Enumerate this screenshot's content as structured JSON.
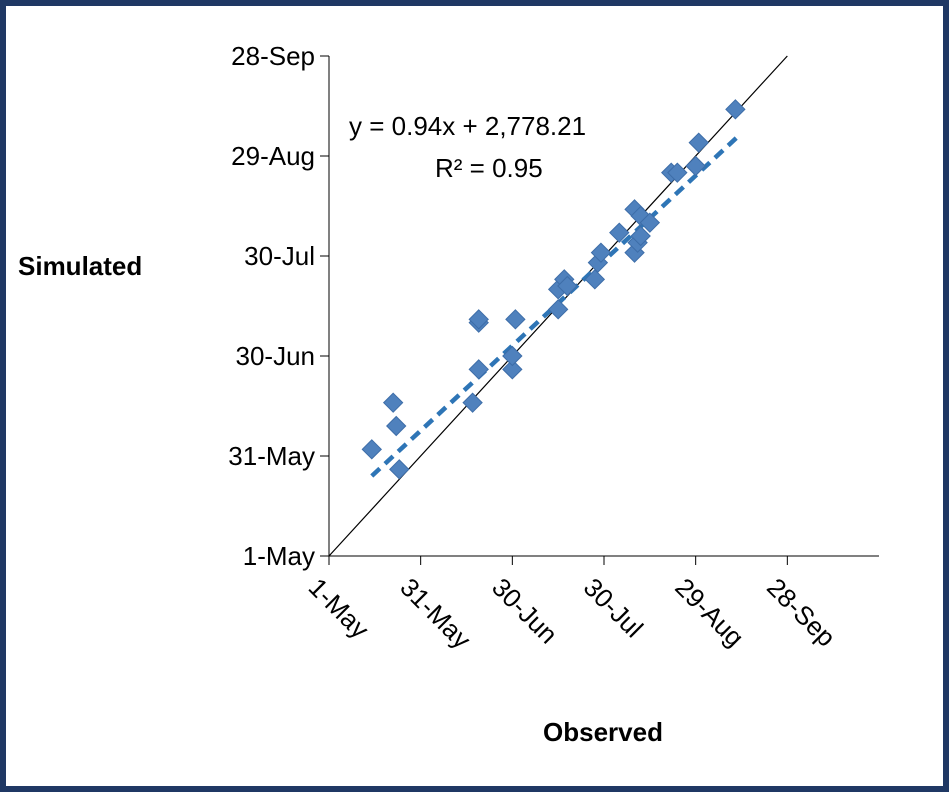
{
  "chart_data": {
    "type": "scatter",
    "xlabel": "Observed",
    "ylabel": "Simulated",
    "x_ticks": [
      "1-May",
      "31-May",
      "30-Jun",
      "30-Jul",
      "29-Aug",
      "28-Sep"
    ],
    "y_ticks": [
      "1-May",
      "31-May",
      "30-Jun",
      "30-Jul",
      "29-Aug",
      "28-Sep"
    ],
    "xlim": [
      "1-May",
      "28-Oct"
    ],
    "ylim": [
      "1-May",
      "28-Sep"
    ],
    "grid": false,
    "marker": "diamond",
    "marker_color": "#4f81bd",
    "trendline_color": "#2e75b6",
    "reference_line_color": "#000000",
    "equation": "y = 0.94x + 2,778.21",
    "r_squared": "R² = 0.95",
    "points": [
      {
        "x": "15-May",
        "y": "33-May"
      },
      {
        "x": "22-May",
        "y": "16-Jun"
      },
      {
        "x": "23-May",
        "y": "09-Jun"
      },
      {
        "x": "24-May",
        "y": "27-May"
      },
      {
        "x": "17-Jun",
        "y": "16-Jun"
      },
      {
        "x": "19-Jun",
        "y": "10-Jul"
      },
      {
        "x": "19-Jun",
        "y": "11-Jul"
      },
      {
        "x": "19-Jun",
        "y": "26-Jun"
      },
      {
        "x": "30-Jun",
        "y": "26-Jun"
      },
      {
        "x": "30-Jun",
        "y": "30-Jun"
      },
      {
        "x": "01-Jul",
        "y": "11-Jul"
      },
      {
        "x": "15-Jul",
        "y": "14-Jul"
      },
      {
        "x": "15-Jul",
        "y": "20-Jul"
      },
      {
        "x": "17-Jul",
        "y": "23-Jul"
      },
      {
        "x": "18-Jul",
        "y": "21-Jul"
      },
      {
        "x": "27-Jul",
        "y": "23-Jul"
      },
      {
        "x": "28-Jul",
        "y": "28-Jul"
      },
      {
        "x": "29-Jul",
        "y": "31-Jul"
      },
      {
        "x": "04-Aug",
        "y": "06-Aug"
      },
      {
        "x": "09-Aug",
        "y": "31-Jul"
      },
      {
        "x": "09-Aug",
        "y": "13-Aug"
      },
      {
        "x": "10-Aug",
        "y": "03-Aug"
      },
      {
        "x": "11-Aug",
        "y": "05-Aug"
      },
      {
        "x": "11-Aug",
        "y": "11-Aug"
      },
      {
        "x": "14-Aug",
        "y": "09-Aug"
      },
      {
        "x": "21-Aug",
        "y": "24-Aug"
      },
      {
        "x": "23-Aug",
        "y": "24-Aug"
      },
      {
        "x": "29-Aug",
        "y": "26-Aug"
      },
      {
        "x": "30-Aug",
        "y": "02-Sep"
      },
      {
        "x": "11-Sep",
        "y": "12-Sep"
      }
    ],
    "trendline": {
      "from": {
        "x": "15-May",
        "y": "25-May"
      },
      "to": {
        "x": "12-Sep",
        "y": "04-Sep"
      }
    }
  }
}
